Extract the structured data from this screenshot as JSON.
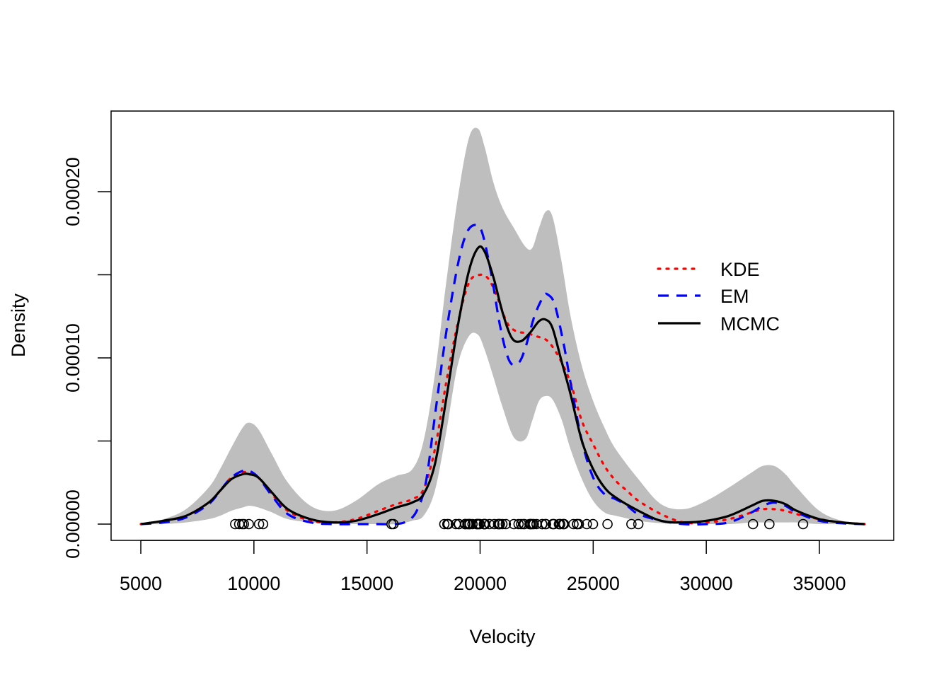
{
  "chart_data": {
    "type": "line",
    "title": "",
    "xlabel": "Velocity",
    "ylabel": "Density",
    "xlim": [
      4000,
      38000
    ],
    "ylim": [
      -1e-05,
      0.000248
    ],
    "x_ticks": [
      5000,
      10000,
      15000,
      20000,
      25000,
      30000,
      35000
    ],
    "x_tick_labels": [
      "5000",
      "10000",
      "15000",
      "20000",
      "25000",
      "30000",
      "35000"
    ],
    "y_ticks": [
      0,
      5e-05,
      0.0001,
      0.00015,
      0.0002
    ],
    "y_tick_labels": [
      "0.00000",
      "",
      "0.00010",
      "",
      "0.00020"
    ],
    "grid": false,
    "legend": {
      "placement": "top-right",
      "entries": [
        {
          "label": "KDE",
          "color": "#ff0000",
          "style": "dotted"
        },
        {
          "label": "EM",
          "color": "#0000ff",
          "style": "dashed"
        },
        {
          "label": "MCMC",
          "color": "#000000",
          "style": "solid"
        }
      ]
    },
    "band": {
      "name": "MCMC credible band",
      "color": "#bebebe",
      "x": [
        5000,
        6000,
        7000,
        8000,
        8500,
        9000,
        9500,
        9800,
        10200,
        10800,
        11500,
        12500,
        13500,
        14500,
        15500,
        16300,
        17000,
        17500,
        18000,
        18500,
        19000,
        19500,
        19900,
        20200,
        20600,
        21000,
        21500,
        22000,
        22300,
        22600,
        22900,
        23200,
        23600,
        24000,
        24500,
        25000,
        25500,
        26000,
        27000,
        28000,
        29000,
        30000,
        31000,
        32000,
        32500,
        33000,
        33500,
        34000,
        35000,
        36000,
        37000
      ],
      "upper": [
        5e-07,
        3e-06,
        9e-06,
        2.2e-05,
        3.3e-05,
        4.6e-05,
        5.8e-05,
        6.1e-05,
        5.7e-05,
        4.2e-05,
        2.5e-05,
        1.1e-05,
        8e-06,
        1.4e-05,
        2.4e-05,
        2.9e-05,
        3.3e-05,
        5e-05,
        9e-05,
        0.000145,
        0.000195,
        0.000232,
        0.000238,
        0.000227,
        0.000205,
        0.00019,
        0.000178,
        0.000167,
        0.000166,
        0.000178,
        0.000188,
        0.000185,
        0.000158,
        0.000125,
        9.5e-05,
        7.4e-05,
        5.8e-05,
        4.5e-05,
        2.7e-05,
        1.2e-05,
        9e-06,
        1.4e-05,
        2.2e-05,
        3.1e-05,
        3.5e-05,
        3.5e-05,
        3e-05,
        2.2e-05,
        8e-06,
        2e-06,
        3e-07
      ],
      "lower": [
        0,
        0,
        1e-06,
        3e-06,
        5e-06,
        8e-06,
        1e-05,
        1.1e-05,
        1e-05,
        7e-06,
        3e-06,
        1e-06,
        0,
        0,
        0,
        0,
        2e-06,
        5e-06,
        2e-05,
        5.5e-05,
        9.5e-05,
        0.000113,
        0.000114,
        0.000105,
        8.8e-05,
        7e-05,
        5.2e-05,
        5.1e-05,
        6.2e-05,
        7.4e-05,
        7.7e-05,
        7.5e-05,
        6.3e-05,
        4.5e-05,
        2.7e-05,
        1.4e-05,
        7e-06,
        5e-06,
        2e-06,
        5e-07,
        0,
        0,
        0,
        1e-06,
        1e-06,
        1e-06,
        1e-06,
        1e-06,
        0,
        0,
        0
      ]
    },
    "series": [
      {
        "name": "KDE",
        "color": "#ff0000",
        "style": "dotted",
        "x": [
          5000,
          6000,
          7000,
          8000,
          8500,
          9000,
          9500,
          9800,
          10200,
          10800,
          11500,
          12500,
          13500,
          14500,
          15500,
          16300,
          17000,
          17500,
          18000,
          18500,
          19000,
          19500,
          20000,
          20400,
          20800,
          21200,
          21600,
          22000,
          22500,
          23000,
          23500,
          24000,
          24500,
          25000,
          25500,
          26000,
          26500,
          27000,
          28000,
          29000,
          30000,
          31000,
          32000,
          32500,
          33000,
          33500,
          34000,
          35000,
          36000,
          37000
        ],
        "y": [
          0,
          2e-06,
          5e-06,
          1.3e-05,
          2e-05,
          2.8e-05,
          3.1e-05,
          3.1e-05,
          2.8e-05,
          1.8e-05,
          8e-06,
          2e-06,
          1e-06,
          3e-06,
          8e-06,
          1.2e-05,
          1.5e-05,
          2.1e-05,
          4.5e-05,
          8.5e-05,
          0.00012,
          0.000145,
          0.00015,
          0.000147,
          0.000135,
          0.000121,
          0.000116,
          0.000115,
          0.000113,
          0.00011,
          0.0001,
          8.5e-05,
          6.2e-05,
          4.8e-05,
          3.5e-05,
          2.6e-05,
          2e-05,
          1.4e-05,
          6e-06,
          1e-06,
          1e-06,
          3e-06,
          7e-06,
          9e-06,
          9e-06,
          8e-06,
          6e-06,
          3e-06,
          1e-06,
          0
        ]
      },
      {
        "name": "EM",
        "color": "#0000ff",
        "style": "dashed",
        "x": [
          5000,
          6000,
          7000,
          8000,
          8500,
          9000,
          9500,
          9800,
          10200,
          10800,
          11500,
          12500,
          13500,
          14500,
          15500,
          16300,
          16800,
          17200,
          17600,
          18000,
          18500,
          19000,
          19400,
          19800,
          20100,
          20500,
          20900,
          21300,
          21700,
          22000,
          22400,
          22800,
          23000,
          23300,
          23700,
          24000,
          24500,
          25000,
          25500,
          26000,
          26500,
          27000,
          28000,
          29000,
          30000,
          31000,
          32000,
          32500,
          33000,
          33500,
          34000,
          35000,
          36000,
          37000
        ],
        "y": [
          0,
          1e-06,
          4e-06,
          1.2e-05,
          2e-05,
          2.8e-05,
          3.2e-05,
          3.2e-05,
          2.8e-05,
          1.7e-05,
          6e-06,
          1e-06,
          0,
          0,
          0,
          0,
          2e-06,
          8e-06,
          2.5e-05,
          6.5e-05,
          0.000115,
          0.000155,
          0.000175,
          0.00018,
          0.000175,
          0.00015,
          0.000118,
          9.8e-05,
          9.7e-05,
          0.000106,
          0.000125,
          0.000137,
          0.000138,
          0.000132,
          0.000108,
          8.5e-05,
          5e-05,
          2.8e-05,
          1.8e-05,
          1.5e-05,
          1.1e-05,
          6e-06,
          2e-06,
          0,
          0,
          1e-06,
          7e-06,
          1.1e-05,
          1.3e-05,
          1.1e-05,
          7e-06,
          2e-06,
          5e-07,
          0
        ]
      },
      {
        "name": "MCMC",
        "color": "#000000",
        "style": "solid",
        "x": [
          5000,
          6000,
          7000,
          8000,
          8500,
          9000,
          9500,
          9800,
          10200,
          10800,
          11500,
          12500,
          13500,
          14500,
          15500,
          16300,
          17000,
          17500,
          18000,
          18500,
          19000,
          19500,
          19900,
          20200,
          20600,
          21000,
          21400,
          21800,
          22200,
          22600,
          22900,
          23200,
          23600,
          24000,
          24500,
          25000,
          25500,
          26000,
          27000,
          28000,
          29000,
          30000,
          31000,
          32000,
          32500,
          33000,
          33500,
          34000,
          35000,
          36000,
          37000
        ],
        "y": [
          0,
          2e-06,
          5e-06,
          1.3e-05,
          2e-05,
          2.7e-05,
          3e-05,
          3e-05,
          2.8e-05,
          1.9e-05,
          9e-06,
          3e-06,
          1e-06,
          2e-06,
          6e-06,
          1e-05,
          1.3e-05,
          1.8e-05,
          3.6e-05,
          7.5e-05,
          0.000118,
          0.000152,
          0.000166,
          0.000164,
          0.000148,
          0.000127,
          0.000112,
          0.00011,
          0.000115,
          0.000122,
          0.000123,
          0.000118,
          9.8e-05,
          7.8e-05,
          5e-05,
          3.3e-05,
          2.2e-05,
          1.6e-05,
          8e-06,
          2e-06,
          1e-06,
          2e-06,
          5e-06,
          1.1e-05,
          1.4e-05,
          1.4e-05,
          1.2e-05,
          8e-06,
          3e-06,
          1e-06,
          0
        ]
      }
    ],
    "rug": {
      "name": "observations",
      "y": 0,
      "x": [
        9172,
        9350,
        9483,
        9558,
        9775,
        10227,
        10406,
        16084,
        16170,
        18419,
        18552,
        18600,
        18927,
        19052,
        19070,
        19330,
        19343,
        19349,
        19440,
        19473,
        19529,
        19541,
        19547,
        19663,
        19846,
        19856,
        19863,
        19914,
        19918,
        19973,
        19989,
        20166,
        20175,
        20179,
        20196,
        20215,
        20221,
        20415,
        20629,
        20795,
        20821,
        20846,
        20875,
        20986,
        21137,
        21492,
        21701,
        21814,
        21921,
        21960,
        22185,
        22209,
        22242,
        22249,
        22314,
        22374,
        22495,
        22746,
        22747,
        22888,
        22914,
        23206,
        23241,
        23263,
        23484,
        23538,
        23542,
        23666,
        23706,
        23711,
        24129,
        24285,
        24289,
        24366,
        24717,
        24990,
        25633,
        26690,
        26995,
        32065,
        32789,
        34279
      ]
    }
  }
}
